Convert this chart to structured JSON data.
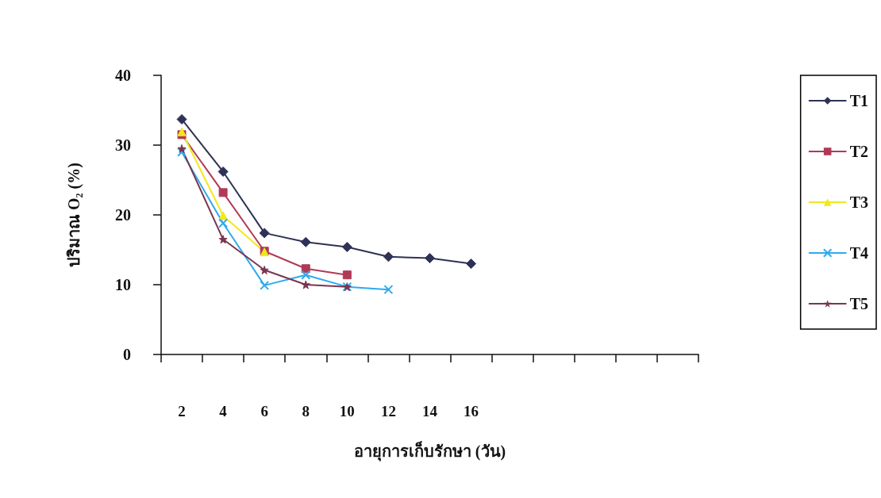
{
  "chart_data": {
    "type": "line",
    "ylabel": "ปริมาณ O₂ (%)",
    "xlabel": "อายุการเก็บรักษา (วัน)",
    "categories": [
      "2",
      "4",
      "6",
      "8",
      "10",
      "12",
      "14",
      "16",
      null,
      null,
      null,
      null,
      null
    ],
    "ylim": [
      0,
      40
    ],
    "yticks": [
      0,
      10,
      20,
      30,
      40
    ],
    "grid": false,
    "legend": "right",
    "series": [
      {
        "name": "T1",
        "color": "#2e3256",
        "marker": "diamond",
        "values": [
          33.7,
          26.2,
          17.4,
          16.1,
          15.4,
          14.0,
          13.8,
          13.0,
          null,
          null,
          null,
          null,
          null
        ]
      },
      {
        "name": "T2",
        "color": "#b03a55",
        "marker": "square",
        "values": [
          31.5,
          23.2,
          14.8,
          12.3,
          11.4,
          null,
          null,
          null,
          null,
          null,
          null,
          null,
          null
        ]
      },
      {
        "name": "T3",
        "color": "#f2e81c",
        "marker": "triangle",
        "values": [
          31.9,
          19.9,
          14.7,
          null,
          null,
          null,
          null,
          null,
          null,
          null,
          null,
          null,
          null
        ]
      },
      {
        "name": "T4",
        "color": "#2eaaee",
        "marker": "cross",
        "values": [
          29.0,
          18.8,
          9.9,
          11.4,
          9.7,
          9.3,
          null,
          null,
          null,
          null,
          null,
          null,
          null
        ]
      },
      {
        "name": "T5",
        "color": "#7a3550",
        "marker": "star",
        "values": [
          29.5,
          16.5,
          12.1,
          10.0,
          9.7,
          null,
          null,
          null,
          null,
          null,
          null,
          null,
          null
        ]
      }
    ]
  }
}
